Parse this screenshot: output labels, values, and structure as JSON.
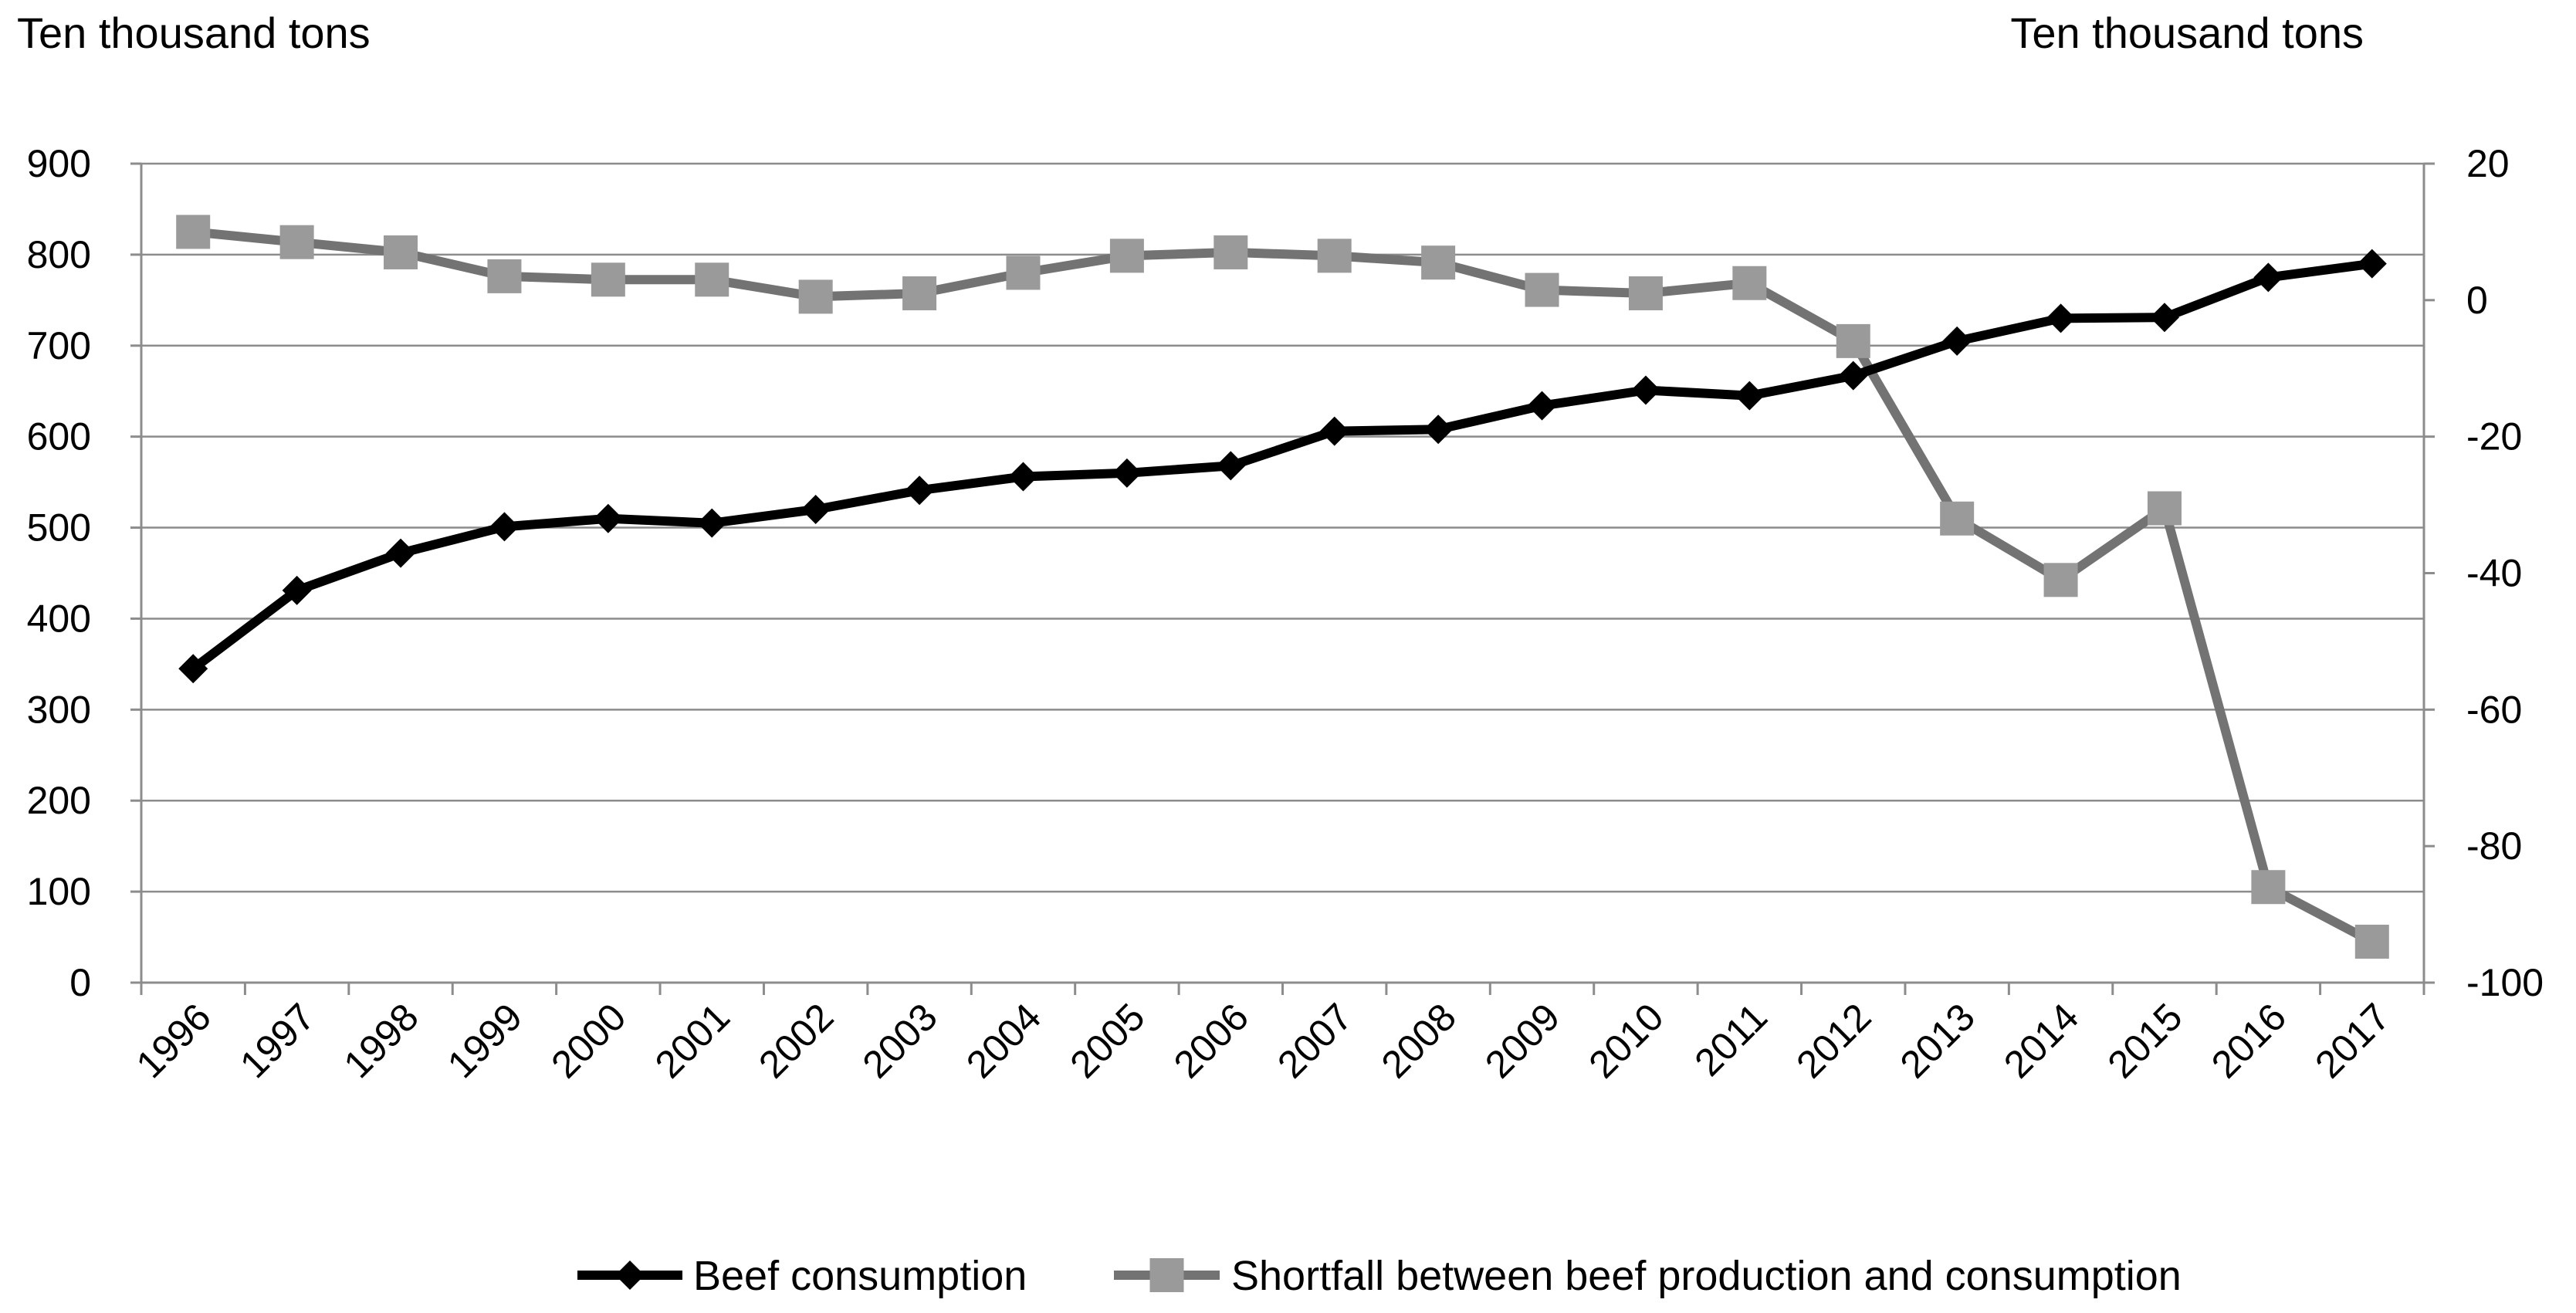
{
  "chart_data": {
    "type": "line",
    "title": "",
    "y_left_label": "Ten thousand tons",
    "y_right_label": "Ten thousand tons",
    "x": [
      "1996",
      "1997",
      "1998",
      "1999",
      "2000",
      "2001",
      "2002",
      "2003",
      "2004",
      "2005",
      "2006",
      "2007",
      "2008",
      "2009",
      "2010",
      "2011",
      "2012",
      "2013",
      "2014",
      "2015",
      "2016",
      "2017"
    ],
    "y_left_range": [
      0,
      900
    ],
    "y_left_ticks": [
      "0",
      "100",
      "200",
      "300",
      "400",
      "500",
      "600",
      "700",
      "800",
      "900"
    ],
    "y_right_range": [
      -100,
      20
    ],
    "y_right_ticks": [
      "-100",
      "-80",
      "-60",
      "-40",
      "-20",
      "0",
      "20"
    ],
    "grid": true,
    "legend_position": "bottom",
    "series": [
      {
        "name": "Beef consumption",
        "axis": "left",
        "color": "#000000",
        "marker": "diamond",
        "values": [
          345,
          431,
          472,
          501,
          510,
          505,
          520,
          541,
          556,
          560,
          568,
          606,
          608,
          634,
          651,
          645,
          667,
          705,
          730,
          731,
          775,
          790
        ]
      },
      {
        "name": "Shortfall between beef production and consumption",
        "axis": "right",
        "color": "#737373",
        "marker": "square",
        "values": [
          10,
          8.5,
          7,
          3.5,
          3,
          3,
          0.5,
          1,
          4,
          6.5,
          7,
          6.5,
          5.5,
          1.5,
          1,
          2.5,
          -6,
          -32,
          -41,
          -30.5,
          -86,
          -94
        ]
      }
    ]
  }
}
